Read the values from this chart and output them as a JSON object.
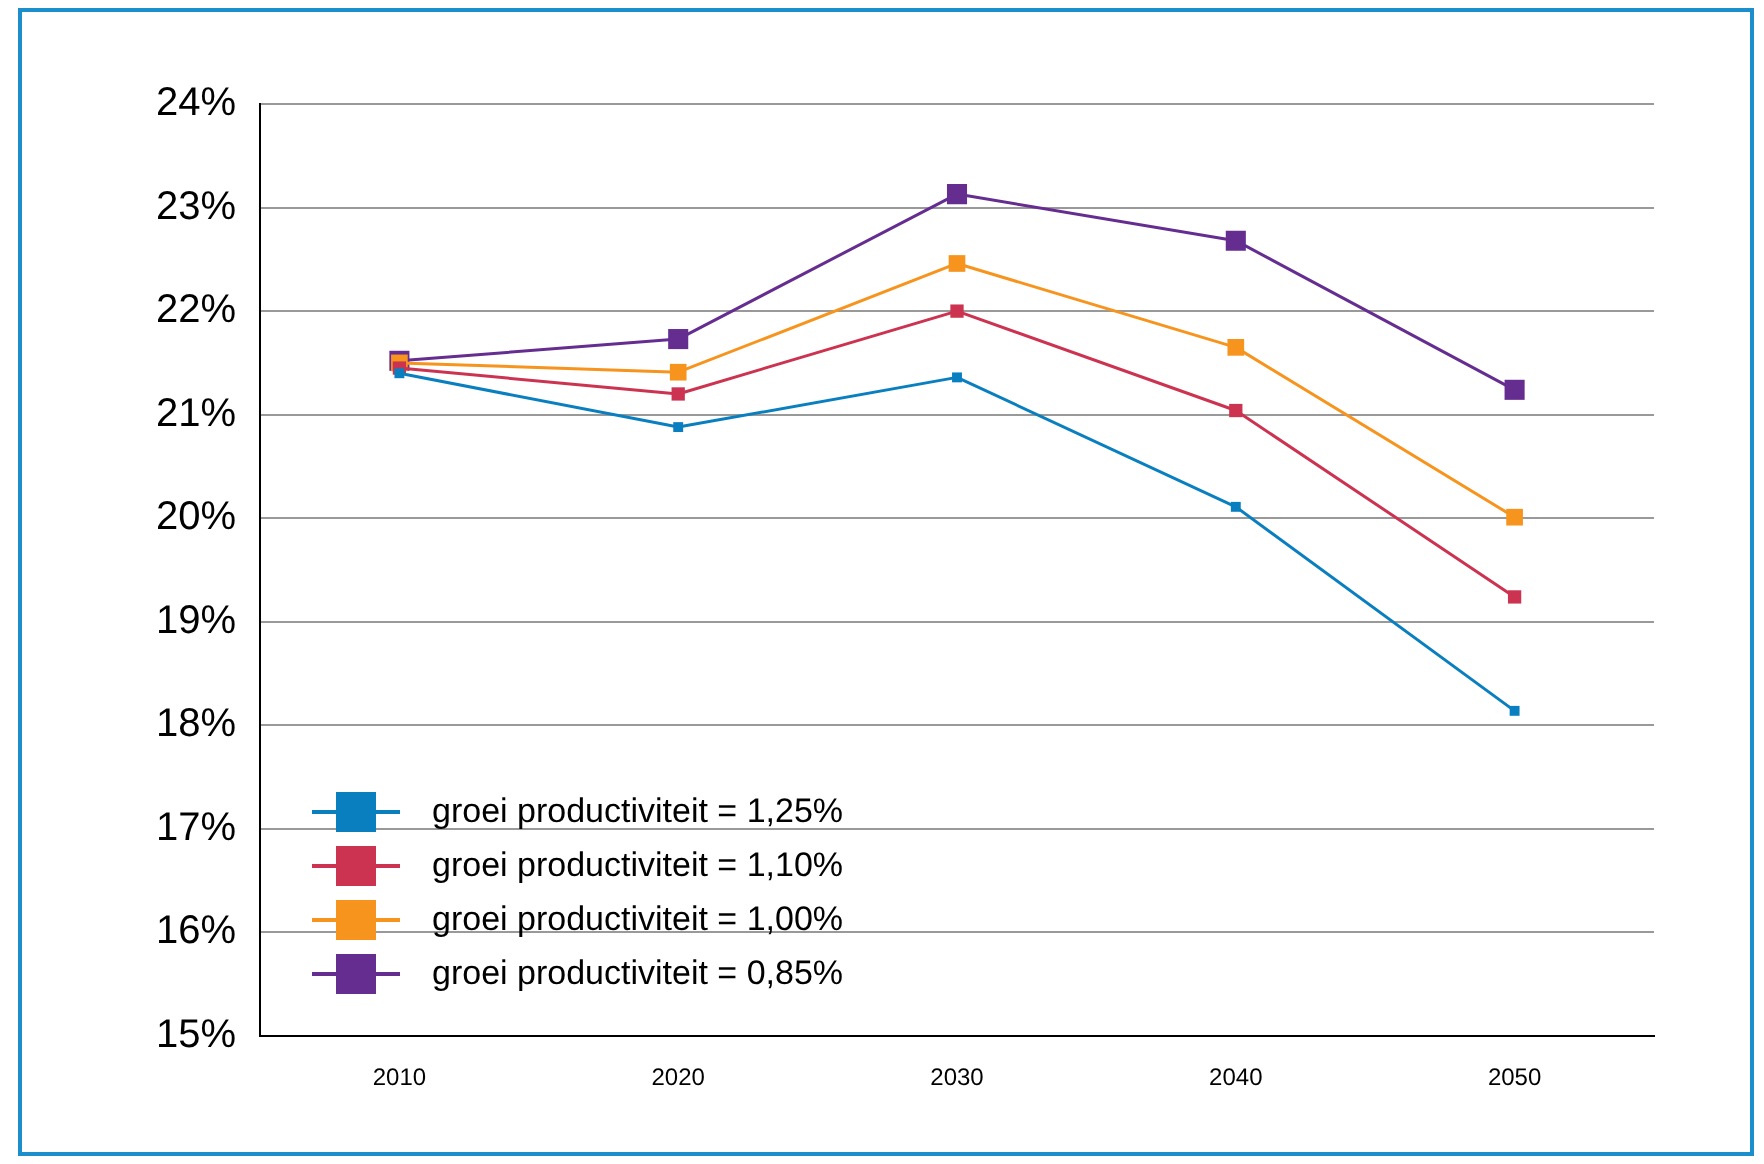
{
  "chart_data": {
    "type": "line",
    "categories": [
      "2010",
      "2020",
      "2030",
      "2040",
      "2050"
    ],
    "series": [
      {
        "name": "groei productiviteit = 1,25%",
        "color": "#0a7fc0",
        "values": [
          21.4,
          20.88,
          21.36,
          20.11,
          18.14
        ]
      },
      {
        "name": "groei productiviteit = 1,10%",
        "color": "#cc3350",
        "values": [
          21.45,
          21.2,
          22.0,
          21.04,
          19.24
        ]
      },
      {
        "name": "groei productiviteit = 1,00%",
        "color": "#f7941d",
        "values": [
          21.5,
          21.41,
          22.46,
          21.65,
          20.01
        ]
      },
      {
        "name": "groei productiviteit = 0,85%",
        "color": "#662d91",
        "values": [
          21.52,
          21.73,
          23.13,
          22.68,
          21.24
        ]
      }
    ],
    "ylim": [
      15,
      24
    ],
    "yticks": [
      {
        "value": 15,
        "label": "15%"
      },
      {
        "value": 16,
        "label": "16%"
      },
      {
        "value": 17,
        "label": "17%"
      },
      {
        "value": 18,
        "label": "18%"
      },
      {
        "value": 19,
        "label": "19%"
      },
      {
        "value": 20,
        "label": "20%"
      },
      {
        "value": 21,
        "label": "21%"
      },
      {
        "value": 22,
        "label": "22%"
      },
      {
        "value": 23,
        "label": "23%"
      },
      {
        "value": 24,
        "label": "24%"
      }
    ],
    "grid": "y",
    "legend": "bottom left",
    "marker": "square",
    "line_style": "solid"
  }
}
